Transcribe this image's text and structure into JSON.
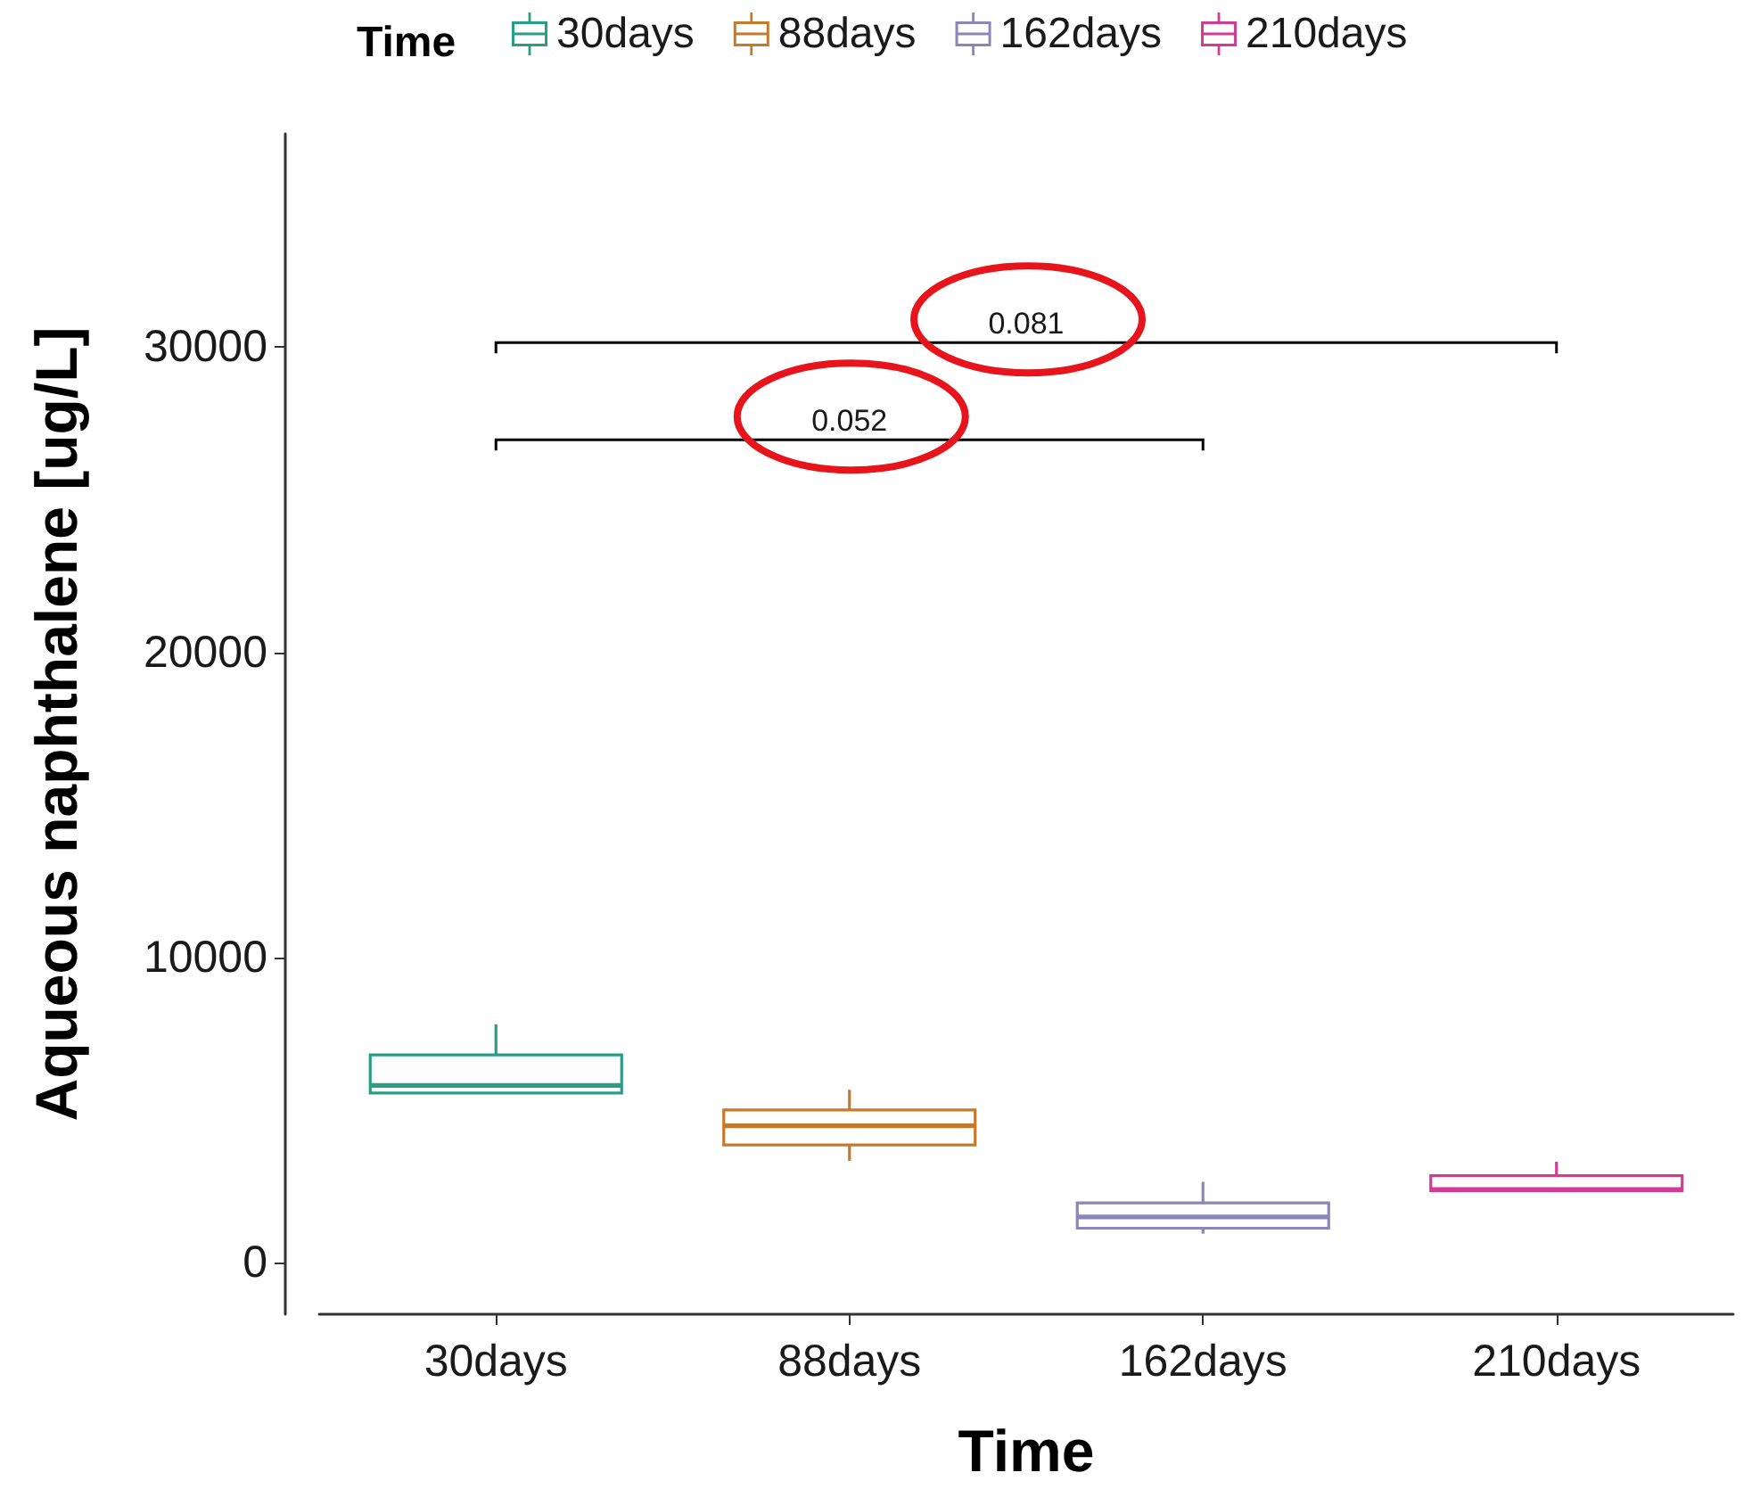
{
  "chart_data": {
    "type": "box",
    "categories": [
      "30days",
      "88days",
      "162days",
      "210days"
    ],
    "series": [
      {
        "name": "30days",
        "color": "#2a9d86",
        "boxes": [
          {
            "low": 5550,
            "q1": 5550,
            "median": 5800,
            "q3": 6800,
            "high": 7800
          },
          null,
          null,
          null
        ]
      },
      {
        "name": "88days",
        "color": "#c47a2a",
        "boxes": [
          null,
          {
            "low": 3330,
            "q1": 3850,
            "median": 4480,
            "q3": 5000,
            "high": 5660
          },
          null,
          null
        ]
      },
      {
        "name": "162days",
        "color": "#8b86b8",
        "boxes": [
          null,
          null,
          {
            "low": 940,
            "q1": 1120,
            "median": 1490,
            "q3": 1950,
            "high": 2640
          },
          null
        ]
      },
      {
        "name": "210days",
        "color": "#d33a93",
        "boxes": [
          null,
          null,
          null,
          {
            "low": 2350,
            "q1": 2350,
            "median": 2390,
            "q3": 2840,
            "high": 3300
          }
        ]
      }
    ],
    "xlabel": "Time",
    "ylabel": "Aqueous naphthalene [ug/L]",
    "legend_title": "Time",
    "ylim": [
      -1700,
      37000
    ],
    "yticks": [
      0,
      10000,
      20000,
      30000
    ],
    "grid": false,
    "legend": "top",
    "annotations": [
      "0.052",
      "0.081"
    ]
  }
}
